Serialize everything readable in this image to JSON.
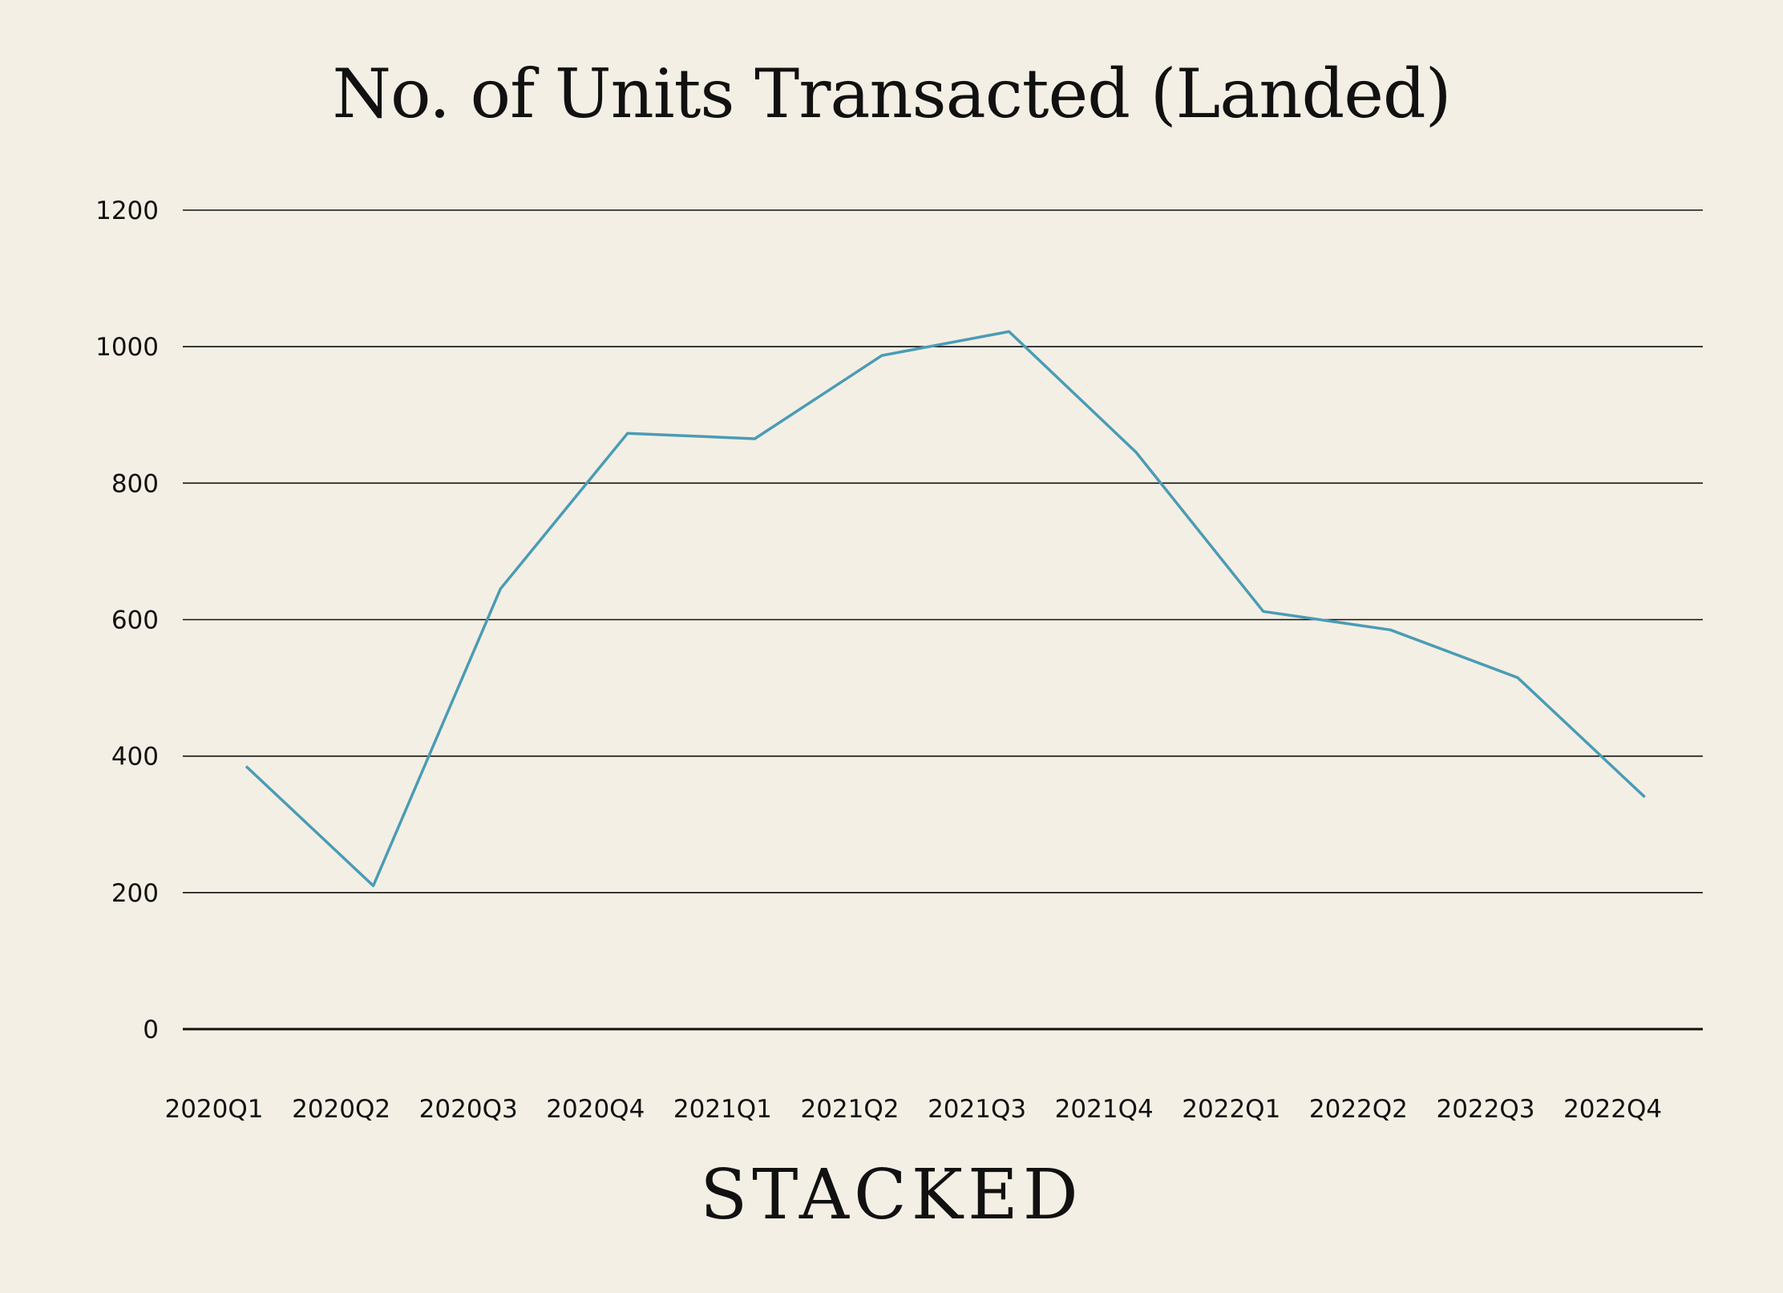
{
  "chart_data": {
    "type": "line",
    "title": "No. of Units Transacted (Landed)",
    "xlabel": "",
    "ylabel": "",
    "categories": [
      "2020Q1",
      "2020Q2",
      "2020Q3",
      "2020Q4",
      "2021Q1",
      "2021Q2",
      "2021Q3",
      "2021Q4",
      "2022Q1",
      "2022Q2",
      "2022Q3",
      "2022Q4"
    ],
    "series": [
      {
        "values": [
          385,
          210,
          645,
          873,
          865,
          987,
          1022,
          845,
          612,
          585,
          515,
          340
        ]
      }
    ],
    "ylim": [
      0,
      1200
    ],
    "yticks": [
      "0",
      "200",
      "400",
      "600",
      "800",
      "1000",
      "1200"
    ],
    "grid": true,
    "line_color": "#4a9cb6"
  },
  "brand": {
    "wordmark": "STACKED"
  }
}
